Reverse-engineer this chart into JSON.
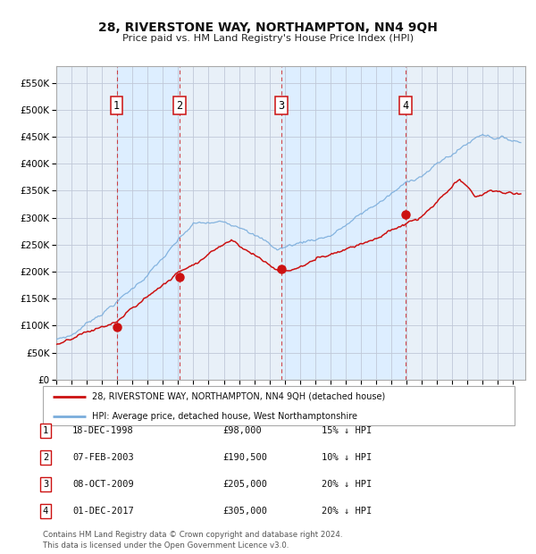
{
  "title": "28, RIVERSTONE WAY, NORTHAMPTON, NN4 9QH",
  "subtitle": "Price paid vs. HM Land Registry's House Price Index (HPI)",
  "ytick_values": [
    0,
    50000,
    100000,
    150000,
    200000,
    250000,
    300000,
    350000,
    400000,
    450000,
    500000,
    550000
  ],
  "ylim": [
    0,
    580000
  ],
  "xlim_start": 1995.0,
  "xlim_end": 2025.8,
  "sale_dates": [
    1998.96,
    2003.09,
    2009.77,
    2017.92
  ],
  "sale_prices": [
    98000,
    190500,
    205000,
    305000
  ],
  "sale_labels": [
    "1",
    "2",
    "3",
    "4"
  ],
  "hpi_color": "#7aaddc",
  "property_color": "#cc1111",
  "background_color": "#ffffff",
  "shaded_color": "#ddeeff",
  "grid_color": "#cccccc",
  "legend_property": "28, RIVERSTONE WAY, NORTHAMPTON, NN4 9QH (detached house)",
  "legend_hpi": "HPI: Average price, detached house, West Northamptonshire",
  "table_rows": [
    [
      "1",
      "18-DEC-1998",
      "£98,000",
      "15% ↓ HPI"
    ],
    [
      "2",
      "07-FEB-2003",
      "£190,500",
      "10% ↓ HPI"
    ],
    [
      "3",
      "08-OCT-2009",
      "£205,000",
      "20% ↓ HPI"
    ],
    [
      "4",
      "01-DEC-2017",
      "£305,000",
      "20% ↓ HPI"
    ]
  ],
  "footer": "Contains HM Land Registry data © Crown copyright and database right 2024.\nThis data is licensed under the Open Government Licence v3.0."
}
